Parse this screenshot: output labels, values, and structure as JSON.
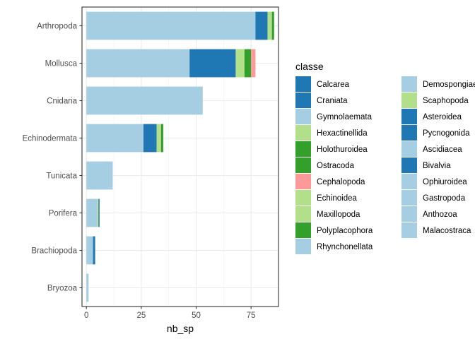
{
  "chart_data": {
    "type": "bar",
    "orientation": "horizontal",
    "stacked": true,
    "xlabel": "nb_sp",
    "ylabel": "",
    "xlim": [
      -2,
      87.5
    ],
    "xticks": [
      0,
      25,
      50,
      75
    ],
    "grid": true,
    "legend_title": "classe",
    "legend_position": "right",
    "categories": [
      "Arthropoda",
      "Mollusca",
      "Cnidaria",
      "Echinodermata",
      "Tunicata",
      "Porifera",
      "Brachiopoda",
      "Bryozoa"
    ],
    "classes": [
      {
        "name": "Calcarea",
        "color": "#1F78B4"
      },
      {
        "name": "Craniata",
        "color": "#1F78B4"
      },
      {
        "name": "Gymnolaemata",
        "color": "#A6CEE3"
      },
      {
        "name": "Hexactinellida",
        "color": "#B2DF8A"
      },
      {
        "name": "Holothuroidea",
        "color": "#33A02C"
      },
      {
        "name": "Ostracoda",
        "color": "#33A02C"
      },
      {
        "name": "Cephalopoda",
        "color": "#FB9A99"
      },
      {
        "name": "Echinoidea",
        "color": "#B2DF8A"
      },
      {
        "name": "Maxillopoda",
        "color": "#B2DF8A"
      },
      {
        "name": "Polyplacophora",
        "color": "#33A02C"
      },
      {
        "name": "Rhynchonellata",
        "color": "#A6CEE3"
      },
      {
        "name": "Demospongiae",
        "color": "#A6CEE3"
      },
      {
        "name": "Scaphopoda",
        "color": "#B2DF8A"
      },
      {
        "name": "Asteroidea",
        "color": "#1F78B4"
      },
      {
        "name": "Pycnogonida",
        "color": "#1F78B4"
      },
      {
        "name": "Ascidiacea",
        "color": "#A6CEE3"
      },
      {
        "name": "Bivalvia",
        "color": "#1F78B4"
      },
      {
        "name": "Ophiuroidea",
        "color": "#A6CEE3"
      },
      {
        "name": "Gastropoda",
        "color": "#A6CEE3"
      },
      {
        "name": "Anthozoa",
        "color": "#A6CEE3"
      },
      {
        "name": "Malacostraca",
        "color": "#A6CEE3"
      }
    ],
    "bars": [
      {
        "category": "Arthropoda",
        "segments": [
          {
            "classe": "Malacostraca",
            "value": 77
          },
          {
            "classe": "Pycnogonida",
            "value": 5.5
          },
          {
            "classe": "Maxillopoda",
            "value": 2
          },
          {
            "classe": "Ostracoda",
            "value": 1
          }
        ]
      },
      {
        "category": "Mollusca",
        "segments": [
          {
            "classe": "Gastropoda",
            "value": 47
          },
          {
            "classe": "Bivalvia",
            "value": 21
          },
          {
            "classe": "Scaphopoda",
            "value": 4
          },
          {
            "classe": "Polyplacophora",
            "value": 3
          },
          {
            "classe": "Cephalopoda",
            "value": 2
          }
        ]
      },
      {
        "category": "Cnidaria",
        "segments": [
          {
            "classe": "Anthozoa",
            "value": 53
          }
        ]
      },
      {
        "category": "Echinodermata",
        "segments": [
          {
            "classe": "Ophiuroidea",
            "value": 26
          },
          {
            "classe": "Asteroidea",
            "value": 6
          },
          {
            "classe": "Echinoidea",
            "value": 2
          },
          {
            "classe": "Holothuroidea",
            "value": 1
          }
        ]
      },
      {
        "category": "Tunicata",
        "segments": [
          {
            "classe": "Ascidiacea",
            "value": 12
          }
        ]
      },
      {
        "category": "Porifera",
        "segments": [
          {
            "classe": "Demospongiae",
            "value": 5
          },
          {
            "classe": "Hexactinellida",
            "value": 0.5
          },
          {
            "classe": "Calcarea",
            "value": 0.5
          }
        ]
      },
      {
        "category": "Brachiopoda",
        "segments": [
          {
            "classe": "Rhynchonellata",
            "value": 3
          },
          {
            "classe": "Craniata",
            "value": 1
          }
        ]
      },
      {
        "category": "Bryozoa",
        "segments": [
          {
            "classe": "Gymnolaemata",
            "value": 1
          }
        ]
      }
    ]
  }
}
